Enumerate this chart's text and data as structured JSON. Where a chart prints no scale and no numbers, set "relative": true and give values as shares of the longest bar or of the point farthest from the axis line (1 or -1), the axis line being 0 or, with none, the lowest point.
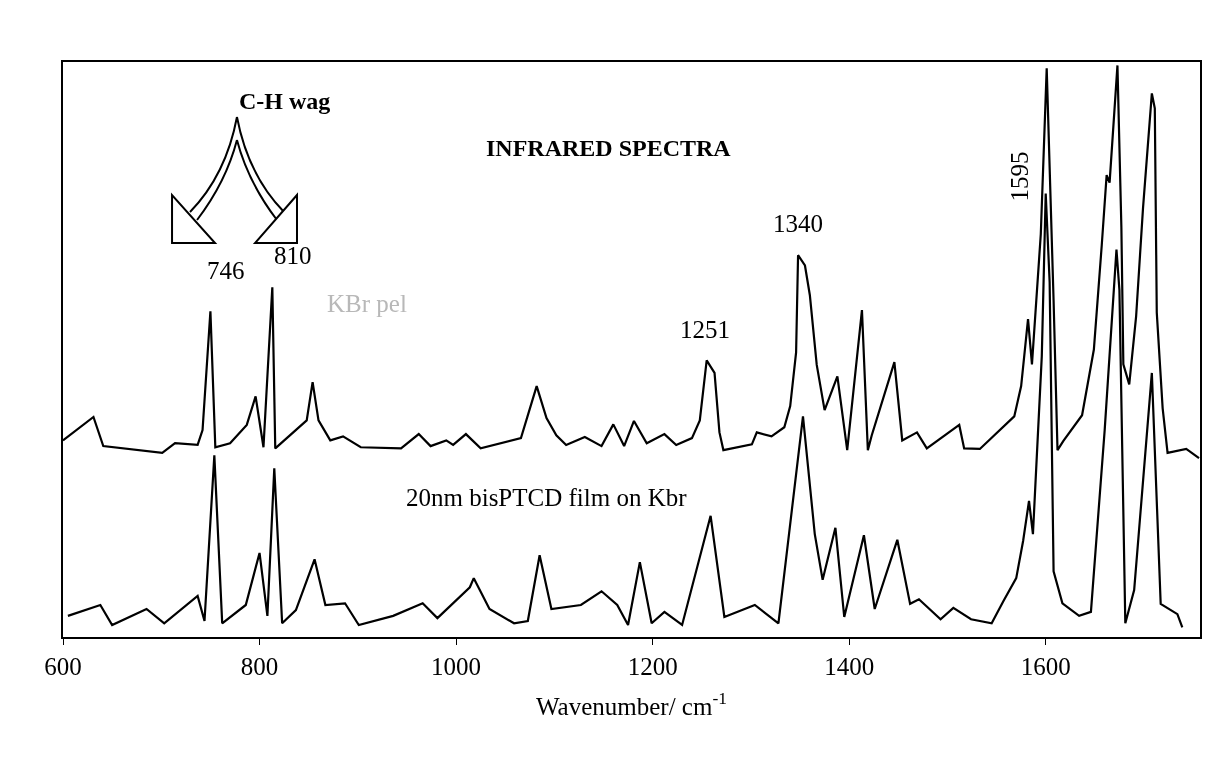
{
  "chart_data": {
    "type": "line",
    "title": "INFRARED SPECTRA",
    "xlabel": "Wavenumber/ cm$^{-1}$",
    "relative": true,
    "xlim": [
      600,
      1757
    ],
    "xticks": [
      600,
      800,
      1000,
      1200,
      1400,
      1600
    ],
    "legend": false,
    "marker": "none",
    "line_style": "solid",
    "series": [
      {
        "name": "KBr pel",
        "color": "#000000",
        "x": [
          600,
          631,
          641,
          701,
          714,
          737,
          742,
          750,
          755,
          770,
          787,
          796,
          804,
          813,
          816,
          848,
          854,
          860,
          872,
          885,
          903,
          944,
          962,
          974,
          990,
          997,
          1010,
          1025,
          1066,
          1082,
          1092,
          1102,
          1112,
          1131,
          1148,
          1160,
          1171,
          1181,
          1194,
          1212,
          1224,
          1240,
          1248,
          1255,
          1263,
          1268,
          1272,
          1301,
          1306,
          1321,
          1334,
          1340,
          1346,
          1348,
          1355,
          1360,
          1367,
          1375,
          1388,
          1398,
          1413,
          1419,
          1423,
          1446,
          1454,
          1469,
          1479,
          1512,
          1517,
          1533,
          1568,
          1575,
          1582,
          1586,
          1595,
          1601,
          1608,
          1612,
          1618,
          1637,
          1649,
          1657,
          1662,
          1665,
          1673,
          1677,
          1679,
          1685,
          1692,
          1699,
          1708,
          1711,
          1713,
          1719,
          1724,
          1743,
          1756
        ],
        "values": [
          0.344,
          0.385,
          0.334,
          0.322,
          0.339,
          0.336,
          0.362,
          0.57,
          0.332,
          0.339,
          0.371,
          0.421,
          0.332,
          0.612,
          0.33,
          0.379,
          0.446,
          0.379,
          0.344,
          0.351,
          0.332,
          0.33,
          0.355,
          0.334,
          0.344,
          0.336,
          0.355,
          0.33,
          0.348,
          0.439,
          0.383,
          0.353,
          0.336,
          0.35,
          0.334,
          0.372,
          0.334,
          0.378,
          0.339,
          0.355,
          0.336,
          0.348,
          0.379,
          0.484,
          0.462,
          0.358,
          0.327,
          0.337,
          0.358,
          0.351,
          0.367,
          0.404,
          0.498,
          0.668,
          0.65,
          0.598,
          0.476,
          0.397,
          0.456,
          0.327,
          0.572,
          0.327,
          0.353,
          0.481,
          0.344,
          0.358,
          0.33,
          0.371,
          0.33,
          0.329,
          0.386,
          0.439,
          0.556,
          0.477,
          0.705,
          0.995,
          0.589,
          0.327,
          0.343,
          0.388,
          0.503,
          0.685,
          0.808,
          0.795,
          1.0,
          0.717,
          0.477,
          0.442,
          0.561,
          0.75,
          0.951,
          0.925,
          0.568,
          0.4,
          0.322,
          0.329,
          0.313
        ]
      },
      {
        "name": "20nm bisPTCD film on Kbr",
        "color": "#000000",
        "x": [
          605,
          638,
          650,
          685,
          703,
          737,
          744,
          754,
          762,
          786,
          800,
          808,
          815,
          823,
          837,
          856,
          867,
          887,
          901,
          936,
          966,
          981,
          1014,
          1018,
          1034,
          1059,
          1073,
          1085,
          1097,
          1127,
          1148,
          1164,
          1175,
          1187,
          1199,
          1212,
          1230,
          1259,
          1273,
          1304,
          1328,
          1353,
          1365,
          1373,
          1386,
          1395,
          1415,
          1426,
          1449,
          1462,
          1471,
          1493,
          1506,
          1524,
          1545,
          1557,
          1570,
          1577,
          1583,
          1587,
          1596,
          1600,
          1604,
          1608,
          1617,
          1634,
          1646,
          1660,
          1672,
          1675,
          1681,
          1690,
          1708,
          1717,
          1734,
          1739
        ],
        "values": [
          0.037,
          0.056,
          0.021,
          0.049,
          0.024,
          0.072,
          0.028,
          0.318,
          0.024,
          0.056,
          0.147,
          0.037,
          0.295,
          0.024,
          0.047,
          0.136,
          0.056,
          0.059,
          0.021,
          0.037,
          0.059,
          0.033,
          0.087,
          0.103,
          0.049,
          0.024,
          0.028,
          0.143,
          0.049,
          0.056,
          0.08,
          0.056,
          0.021,
          0.131,
          0.024,
          0.044,
          0.021,
          0.212,
          0.035,
          0.056,
          0.024,
          0.386,
          0.18,
          0.1,
          0.191,
          0.035,
          0.178,
          0.049,
          0.17,
          0.058,
          0.066,
          0.031,
          0.051,
          0.031,
          0.024,
          0.063,
          0.103,
          0.168,
          0.238,
          0.18,
          0.491,
          0.776,
          0.621,
          0.115,
          0.059,
          0.037,
          0.044,
          0.362,
          0.678,
          0.607,
          0.024,
          0.082,
          0.462,
          0.058,
          0.04,
          0.017
        ]
      }
    ],
    "annotations": [
      "C-H wag",
      "746",
      "810",
      "1251",
      "1340",
      "1595"
    ]
  }
}
